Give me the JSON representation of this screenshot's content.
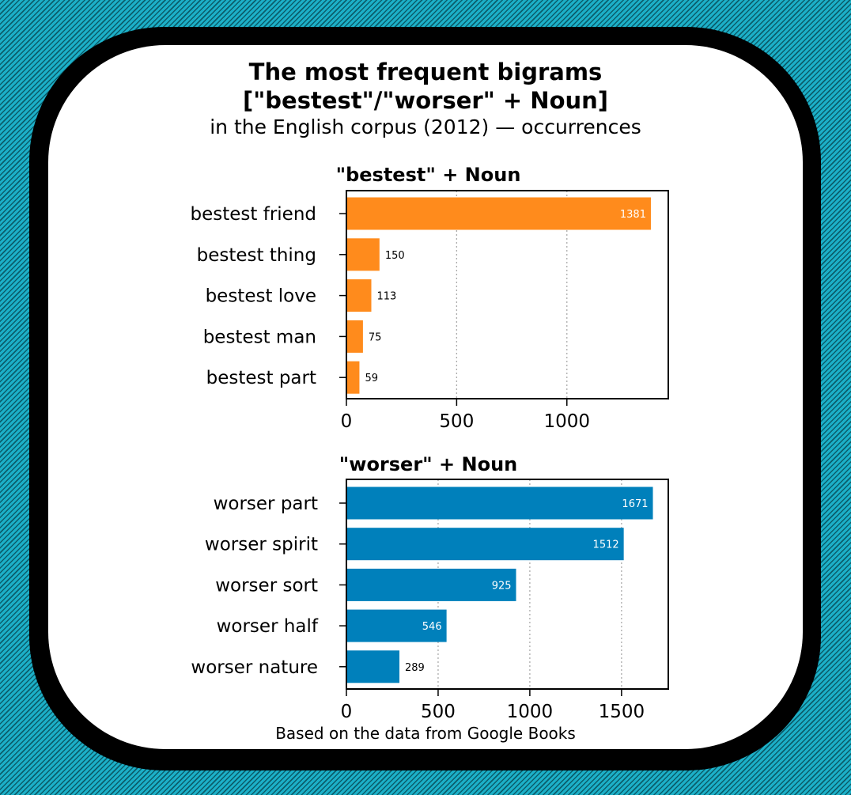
{
  "title_line1": "The most frequent  bigrams",
  "title_line2": "[\"bestest\"/\"worser\" + Noun]",
  "subtitle": "in the English corpus (2012) — occurrences",
  "footer": "Based on the data from Google Books",
  "colors": {
    "bestest": "#ff8b1c",
    "worser": "#0080bb",
    "background_stripes": "#1cb0c8"
  },
  "chart_data": [
    {
      "type": "bar",
      "orientation": "horizontal",
      "title": "\"bestest\" + Noun",
      "categories": [
        "bestest friend",
        "bestest thing",
        "bestest love",
        "bestest man",
        "bestest part"
      ],
      "values": [
        1381,
        150,
        113,
        75,
        59
      ],
      "value_labels": [
        "1381",
        "150",
        "113",
        "75",
        "59"
      ],
      "xlim": [
        0,
        1460
      ],
      "xticks": [
        0,
        500,
        1000
      ],
      "xtick_labels": [
        "0",
        "500",
        "1000"
      ],
      "grid": "x-dotted",
      "color": "#ff8b1c"
    },
    {
      "type": "bar",
      "orientation": "horizontal",
      "title": "\"worser\" + Noun",
      "categories": [
        "worser part",
        "worser spirit",
        "worser sort",
        "worser half",
        "worser nature"
      ],
      "values": [
        1671,
        1512,
        925,
        546,
        289
      ],
      "value_labels": [
        "1671",
        "1512",
        "925",
        "546",
        "289"
      ],
      "xlim": [
        0,
        1755
      ],
      "xticks": [
        0,
        500,
        1000,
        1500
      ],
      "xtick_labels": [
        "0",
        "500",
        "1000",
        "1500"
      ],
      "grid": "x-dotted",
      "color": "#0080bb"
    }
  ]
}
